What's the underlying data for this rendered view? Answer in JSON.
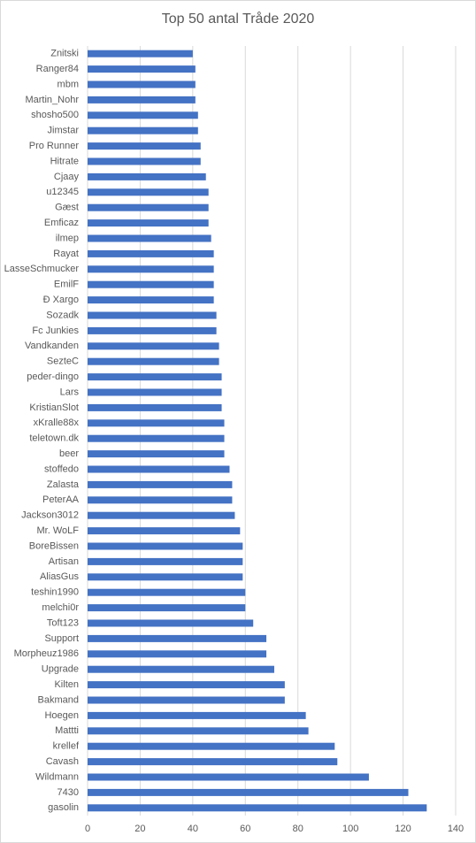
{
  "chart_data": {
    "type": "barh",
    "title": "Top 50 antal Tråde 2020",
    "categories": [
      "Znitski",
      "Ranger84",
      "mbm",
      "Martin_Nohr",
      "shosho500",
      "Jimstar",
      "Pro Runner",
      "Hitrate",
      "Cjaay",
      "u12345",
      "Gæst",
      "Emficaz",
      "ilmep",
      "Rayat",
      "LasseSchmucker",
      "EmilF",
      "Ð Xargo",
      "Sozadk",
      "Fc Junkies",
      "Vandkanden",
      "SezteC",
      "peder-dingo",
      "Lars",
      "KristianSlot",
      "xKralle88x",
      "teletown.dk",
      "beer",
      "stoffedo",
      "Zalasta",
      "PeterAA",
      "Jackson3012",
      "Mr. WoLF",
      "BoreBissen",
      "Artisan",
      "AliasGus",
      "teshin1990",
      "melchi0r",
      "Toft123",
      "Support",
      "Morpheuz1986",
      "Upgrade",
      "Kilten",
      "Bakmand",
      "Hoegen",
      "Mattti",
      "krellef",
      "Cavash",
      "Wildmann",
      "7430",
      "gasolin"
    ],
    "values": [
      40,
      41,
      41,
      41,
      42,
      42,
      43,
      43,
      45,
      46,
      46,
      46,
      47,
      48,
      48,
      48,
      48,
      49,
      49,
      50,
      50,
      51,
      51,
      51,
      52,
      52,
      52,
      54,
      55,
      55,
      56,
      58,
      59,
      59,
      59,
      60,
      60,
      63,
      68,
      68,
      71,
      75,
      75,
      83,
      84,
      94,
      95,
      107,
      122,
      129
    ],
    "color": "#4472c4",
    "xlim": [
      0,
      140
    ],
    "xticks": [
      0,
      20,
      40,
      60,
      80,
      100,
      120,
      140
    ],
    "grid": true
  }
}
